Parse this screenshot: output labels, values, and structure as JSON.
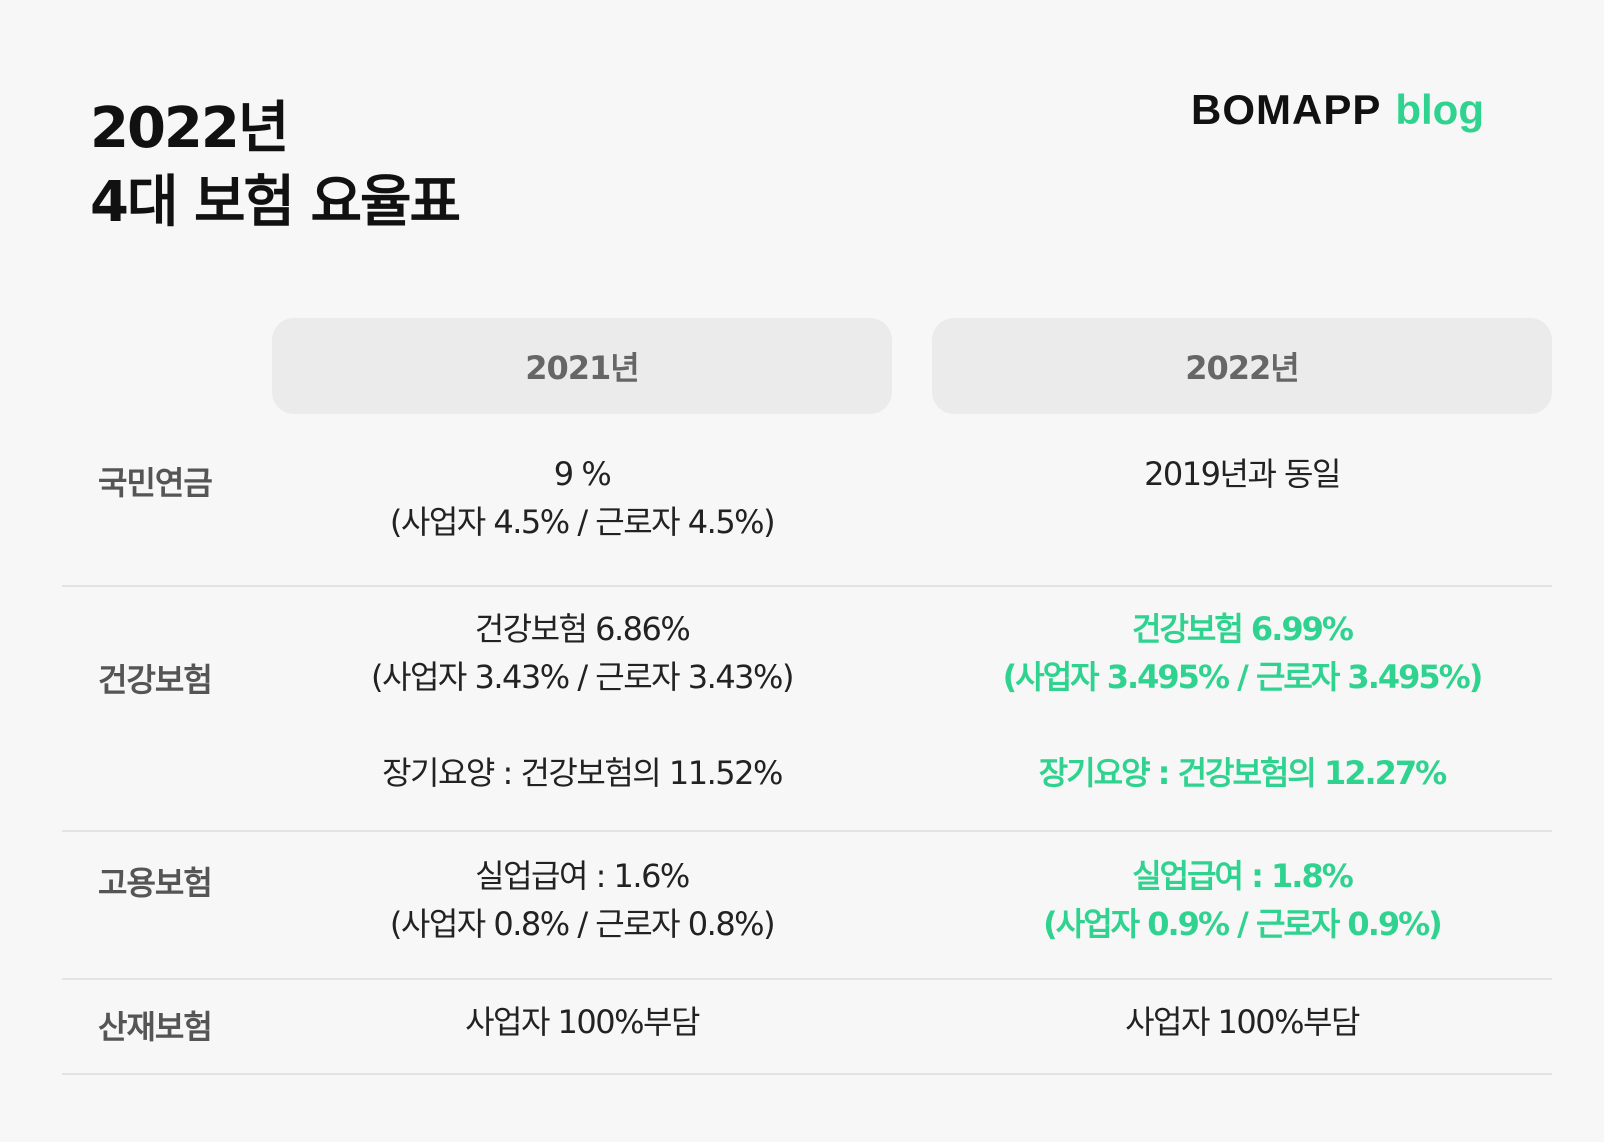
{
  "title": {
    "line1": "2022년",
    "line2": "4대 보험 요율표"
  },
  "brand": {
    "name": "BOMAPP",
    "suffix": "blog"
  },
  "columns": [
    "2021년",
    "2022년"
  ],
  "rows": [
    {
      "label": "국민연금",
      "y2021": [
        "9 %",
        "(사업자 4.5% / 근로자 4.5%)"
      ],
      "y2022": [
        "2019년과 동일"
      ]
    },
    {
      "label": "건강보험",
      "y2021": [
        "건강보험 6.86%",
        "(사업자 3.43% / 근로자 3.43%)",
        "장기요양 : 건강보험의 11.52%"
      ],
      "y2022": [
        "건강보험 6.99%",
        "(사업자 3.495% / 근로자 3.495%)",
        "장기요양 : 건강보험의 12.27%"
      ]
    },
    {
      "label": "고용보험",
      "y2021": [
        "실업급여 : 1.6%",
        "(사업자 0.8% / 근로자 0.8%)"
      ],
      "y2022": [
        "실업급여 : 1.8%",
        "(사업자 0.9% / 근로자 0.9%)"
      ]
    },
    {
      "label": "산재보험",
      "y2021": [
        "사업자 100%부담"
      ],
      "y2022": [
        "사업자 100%부담"
      ]
    }
  ],
  "colors": {
    "highlight": "#2fd38f",
    "text": "#222222",
    "label": "#555555",
    "header_bg": "#ebebeb",
    "page_bg": "#f7f7f7"
  }
}
